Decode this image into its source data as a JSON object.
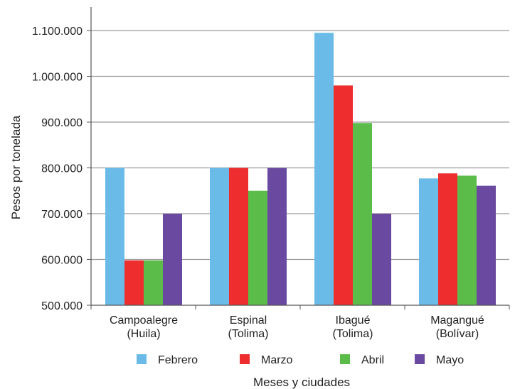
{
  "chart_data": {
    "type": "bar",
    "title": "",
    "xlabel": "Meses y ciudades",
    "ylabel": "Pesos por tonelada",
    "ylim": [
      500000,
      1100000
    ],
    "yticks": [
      {
        "value": 500000,
        "label": "500.000"
      },
      {
        "value": 600000,
        "label": "600.000"
      },
      {
        "value": 700000,
        "label": "700.000"
      },
      {
        "value": 800000,
        "label": "800.000"
      },
      {
        "value": 900000,
        "label": "900.000"
      },
      {
        "value": 1000000,
        "label": "1.000.000"
      },
      {
        "value": 1100000,
        "label": "1.100.000"
      }
    ],
    "grid": true,
    "legend_position": "bottom",
    "categories": [
      {
        "line1": "Campoalegre",
        "line2": "(Huila)"
      },
      {
        "line1": "Espinal",
        "line2": "(Tolima)"
      },
      {
        "line1": "Ibagué",
        "line2": "(Tolima)"
      },
      {
        "line1": "Magangué",
        "line2": "(Bolívar)"
      }
    ],
    "series": [
      {
        "name": "Febrero",
        "color": "#6bbbe8",
        "values": [
          800000,
          800000,
          1095000,
          777000
        ]
      },
      {
        "name": "Marzo",
        "color": "#ee2d2f",
        "values": [
          598000,
          800000,
          980000,
          788000
        ]
      },
      {
        "name": "Abril",
        "color": "#5bbc4a",
        "values": [
          598000,
          750000,
          898000,
          783000
        ]
      },
      {
        "name": "Mayo",
        "color": "#6a4aa0",
        "values": [
          700000,
          800000,
          700000,
          761000
        ]
      }
    ]
  }
}
